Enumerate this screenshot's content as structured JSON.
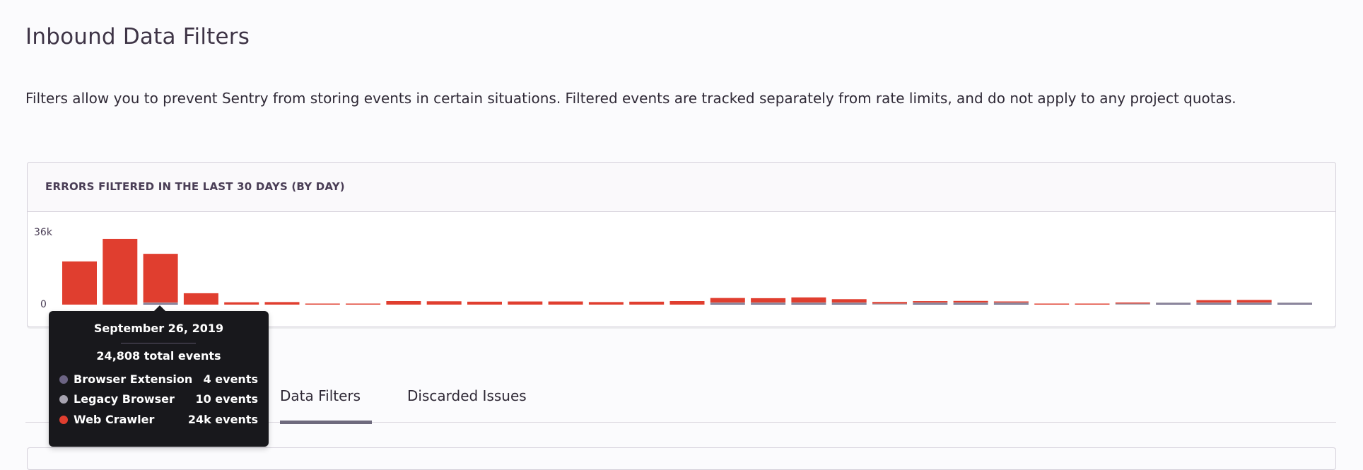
{
  "page": {
    "title": "Inbound Data Filters",
    "description": "Filters allow you to prevent Sentry from storing events in certain situations. Filtered events are tracked separately from rate limits, and do not apply to any project quotas."
  },
  "panel": {
    "title": "ERRORS FILTERED IN THE LAST 30 DAYS (BY DAY)"
  },
  "tabs": [
    {
      "label": "Data Filters",
      "active": true
    },
    {
      "label": "Discarded Issues",
      "active": false
    }
  ],
  "tooltip": {
    "date": "September 26, 2019",
    "total": "24,808 total events",
    "rows": [
      {
        "name": "Browser Extension",
        "value": "4 events",
        "color": "#6c6484"
      },
      {
        "name": "Legacy Browser",
        "value": "10 events",
        "color": "#a7a3b0"
      },
      {
        "name": "Web Crawler",
        "value": "24k events",
        "color": "#e03e2f"
      }
    ]
  },
  "chart_data": {
    "type": "bar",
    "stacked": true,
    "title": "ERRORS FILTERED IN THE LAST 30 DAYS (BY DAY)",
    "y_tick_labels": [
      "36k",
      "0"
    ],
    "ylim": [
      0,
      36000
    ],
    "grid": false,
    "categories_count": 31,
    "series": [
      {
        "name": "Browser Extension",
        "color": "#6c6484",
        "values": [
          0,
          0,
          4,
          0,
          0,
          0,
          0,
          0,
          0,
          0,
          0,
          0,
          0,
          0,
          0,
          0,
          300,
          200,
          200,
          100,
          0,
          300,
          300,
          300,
          0,
          0,
          0,
          300,
          300,
          300,
          300
        ]
      },
      {
        "name": "Legacy Browser",
        "color": "#a7a3b0",
        "values": [
          0,
          0,
          10,
          0,
          0,
          0,
          0,
          0,
          0,
          0,
          0,
          0,
          0,
          0,
          0,
          0,
          400,
          300,
          300,
          300,
          300,
          300,
          400,
          500,
          0,
          0,
          100,
          500,
          400,
          400,
          500
        ]
      },
      {
        "name": "Web Crawler",
        "color": "#e03e2f",
        "values": [
          22000,
          33500,
          24794,
          5800,
          1200,
          1300,
          400,
          400,
          1800,
          1700,
          1500,
          1600,
          1600,
          1300,
          1500,
          1800,
          2300,
          2200,
          2600,
          1700,
          800,
          700,
          800,
          500,
          400,
          300,
          300,
          0,
          1200,
          1300,
          0
        ]
      }
    ]
  }
}
